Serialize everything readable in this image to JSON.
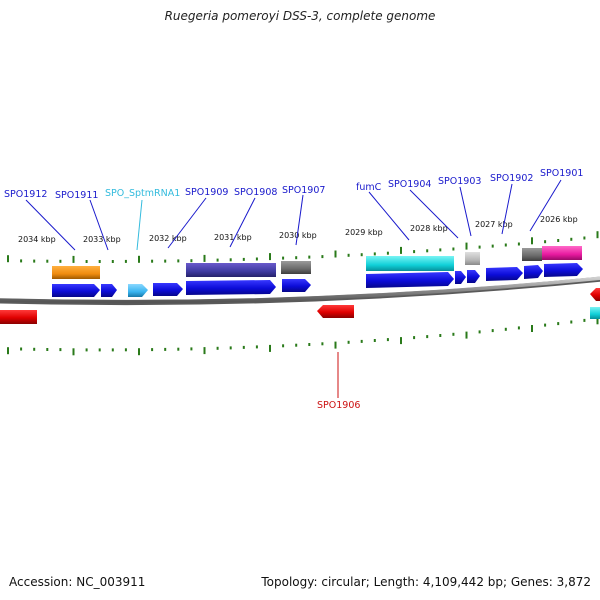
{
  "title": "Ruegeria pomeroyi DSS-3, complete genome",
  "footer": {
    "accession": "Accession: NC_003911",
    "topology": "Topology: circular; Length: 4,109,442 bp; Genes: 3,872"
  },
  "ruler_upper_kbp": [
    "2034 kbp",
    "2033 kbp",
    "2032 kbp",
    "2031 kbp",
    "2030 kbp",
    "2029 kbp",
    "2028 kbp",
    "2027 kbp",
    "2026 kbp"
  ],
  "gene_labels": [
    {
      "text": "SPO1912",
      "color": "#1a1acc"
    },
    {
      "text": "SPO1911",
      "color": "#1a1acc"
    },
    {
      "text": "SPO_SptmRNA1",
      "color": "#33bbdd"
    },
    {
      "text": "SPO1909",
      "color": "#1a1acc"
    },
    {
      "text": "SPO1908",
      "color": "#1a1acc"
    },
    {
      "text": "SPO1907",
      "color": "#1a1acc"
    },
    {
      "text": "fumC",
      "color": "#1a1acc"
    },
    {
      "text": "SPO1904",
      "color": "#1a1acc"
    },
    {
      "text": "SPO1903",
      "color": "#1a1acc"
    },
    {
      "text": "SPO1902",
      "color": "#1a1acc"
    },
    {
      "text": "SPO1901",
      "color": "#1a1acc"
    },
    {
      "text": "SPO1906",
      "color": "#cc1111"
    }
  ],
  "colors": {
    "forward_cds": "#1010dd",
    "reverse_cds": "#e00000",
    "tick": "#2a7a1a",
    "backbone": "#888888"
  }
}
